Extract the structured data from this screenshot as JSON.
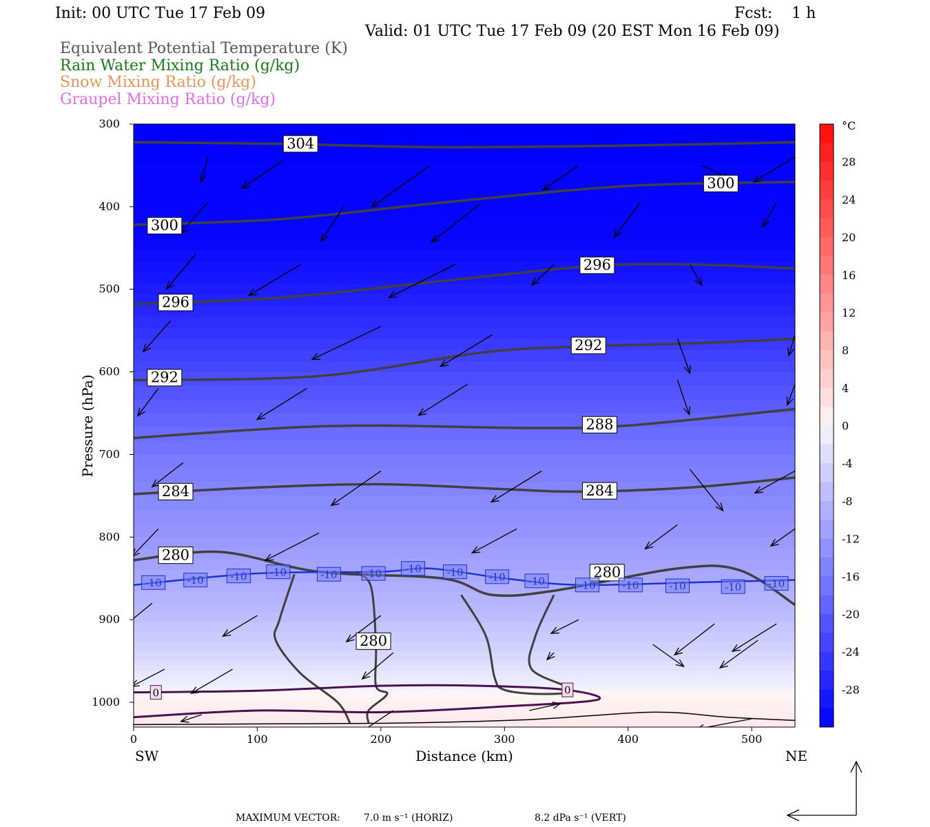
{
  "header": {
    "init": "Init: 00 UTC Tue 17 Feb 09",
    "fcst": "Fcst:    1 h",
    "valid": "Valid: 01 UTC Tue 17 Feb 09 (20 EST Mon 16 Feb 09)"
  },
  "fields": [
    {
      "label": "Equivalent Potential Temperature (K)",
      "color": "#555555"
    },
    {
      "label": "Rain Water Mixing Ratio (g/kg)",
      "color": "#1a7a1a"
    },
    {
      "label": "Snow Mixing Ratio (g/kg)",
      "color": "#e8955a"
    },
    {
      "label": "Graupel Mixing Ratio (g/kg)",
      "color": "#e070e0"
    }
  ],
  "chart_data": {
    "type": "heatmap",
    "xlabel": "Distance (km)",
    "ylabel": "Pressure (hPa)",
    "xlim": [
      0,
      535
    ],
    "ylim": [
      1030,
      300
    ],
    "x_ticks": [
      "0",
      "100",
      "200",
      "300",
      "400",
      "500"
    ],
    "y_ticks": [
      "300",
      "400",
      "500",
      "600",
      "700",
      "800",
      "900",
      "1000"
    ],
    "x_end_labels": {
      "left": "SW",
      "right": "NE"
    },
    "colorbar": {
      "unit": "°C",
      "ticks": [
        "28",
        "24",
        "20",
        "16",
        "12",
        "8",
        "4",
        "0",
        "-4",
        "-8",
        "-12",
        "-16",
        "-20",
        "-24",
        "-28"
      ],
      "range": [
        -32,
        32
      ]
    },
    "theta_e_contours": [
      {
        "label": "304",
        "points": [
          [
            0,
            322
          ],
          [
            120,
            324
          ],
          [
            250,
            328
          ],
          [
            400,
            326
          ],
          [
            535,
            322
          ]
        ],
        "label_at": [
          135,
          324
        ]
      },
      {
        "label": "300",
        "points": [
          [
            0,
            422
          ],
          [
            120,
            415
          ],
          [
            250,
            395
          ],
          [
            400,
            375
          ],
          [
            535,
            370
          ]
        ],
        "label_at": [
          25,
          423
        ]
      },
      {
        "label": "300",
        "points": [],
        "label_at": [
          475,
          372
        ]
      },
      {
        "label": "296",
        "points": [
          [
            0,
            518
          ],
          [
            120,
            510
          ],
          [
            250,
            490
          ],
          [
            370,
            472
          ],
          [
            450,
            470
          ],
          [
            535,
            475
          ]
        ],
        "label_at": [
          34,
          516
        ]
      },
      {
        "label": "296",
        "points": [],
        "label_at": [
          375,
          471
        ]
      },
      {
        "label": "292",
        "points": [
          [
            0,
            610
          ],
          [
            150,
            605
          ],
          [
            280,
            577
          ],
          [
            350,
            570
          ],
          [
            460,
            565
          ],
          [
            535,
            560
          ]
        ],
        "label_at": [
          25,
          607
        ]
      },
      {
        "label": "292",
        "points": [],
        "label_at": [
          368,
          568
        ]
      },
      {
        "label": "288",
        "points": [
          [
            0,
            680
          ],
          [
            120,
            668
          ],
          [
            200,
            665
          ],
          [
            320,
            668
          ],
          [
            400,
            665
          ],
          [
            535,
            645
          ]
        ],
        "label_at": [
          377,
          664
        ]
      },
      {
        "label": "284",
        "points": [
          [
            0,
            748
          ],
          [
            100,
            740
          ],
          [
            200,
            736
          ],
          [
            300,
            742
          ],
          [
            360,
            745
          ],
          [
            450,
            740
          ],
          [
            535,
            728
          ]
        ],
        "label_at": [
          34,
          745
        ]
      },
      {
        "label": "284",
        "points": [],
        "label_at": [
          377,
          744
        ]
      },
      {
        "label": "280",
        "points": [
          [
            0,
            828
          ],
          [
            70,
            818
          ],
          [
            150,
            842
          ],
          [
            250,
            850
          ],
          [
            290,
            870
          ],
          [
            340,
            865
          ],
          [
            440,
            838
          ],
          [
            490,
            840
          ],
          [
            535,
            882
          ]
        ],
        "label_at": [
          34,
          822
        ]
      },
      {
        "label": "280",
        "points": [],
        "label_at": [
          383,
          843
        ]
      },
      {
        "label": "280",
        "points": [],
        "label_at": [
          194,
          926
        ]
      }
    ],
    "isotherm_minus10": {
      "label": "-10",
      "points": [
        [
          0,
          858
        ],
        [
          100,
          844
        ],
        [
          200,
          842
        ],
        [
          240,
          838
        ],
        [
          300,
          850
        ],
        [
          360,
          858
        ],
        [
          450,
          855
        ],
        [
          535,
          852
        ]
      ],
      "label_positions": [
        [
          16,
          855
        ],
        [
          50,
          852
        ],
        [
          85,
          847
        ],
        [
          117,
          842
        ],
        [
          158,
          845
        ],
        [
          194,
          844
        ],
        [
          226,
          838
        ],
        [
          260,
          842
        ],
        [
          294,
          848
        ],
        [
          326,
          853
        ],
        [
          367,
          858
        ],
        [
          402,
          858
        ],
        [
          440,
          859
        ],
        [
          485,
          860
        ],
        [
          520,
          856
        ]
      ]
    },
    "zero_line": {
      "label": "0",
      "points": [
        [
          0,
          988
        ],
        [
          100,
          986
        ],
        [
          200,
          980
        ],
        [
          280,
          980
        ],
        [
          350,
          985
        ],
        [
          375,
          997
        ],
        [
          300,
          1005
        ],
        [
          200,
          1012
        ],
        [
          100,
          1010
        ],
        [
          0,
          1018
        ]
      ],
      "labels": [
        [
          18,
          988
        ],
        [
          351,
          985
        ]
      ]
    },
    "wind_vectors": [
      [
        60,
        340,
        -10,
        36
      ],
      [
        120,
        345,
        -58,
        39
      ],
      [
        240,
        350,
        -85,
        60
      ],
      [
        360,
        350,
        -52,
        36
      ],
      [
        460,
        350,
        40,
        20
      ],
      [
        535,
        340,
        -60,
        36
      ],
      [
        60,
        395,
        -40,
        45
      ],
      [
        170,
        400,
        -33,
        50
      ],
      [
        280,
        397,
        -70,
        55
      ],
      [
        410,
        395,
        -38,
        50
      ],
      [
        520,
        395,
        -20,
        35
      ],
      [
        50,
        458,
        -42,
        50
      ],
      [
        135,
        470,
        -75,
        45
      ],
      [
        260,
        470,
        -96,
        48
      ],
      [
        340,
        470,
        -32,
        30
      ],
      [
        450,
        470,
        17,
        30
      ],
      [
        30,
        538,
        -40,
        45
      ],
      [
        200,
        545,
        -100,
        48
      ],
      [
        290,
        555,
        -75,
        46
      ],
      [
        440,
        560,
        18,
        50
      ],
      [
        535,
        555,
        -9,
        30
      ],
      [
        20,
        620,
        -30,
        40
      ],
      [
        140,
        620,
        -72,
        45
      ],
      [
        270,
        615,
        -71,
        45
      ],
      [
        440,
        610,
        17,
        50
      ],
      [
        535,
        615,
        -11,
        30
      ],
      [
        40,
        710,
        -45,
        35
      ],
      [
        200,
        720,
        -72,
        50
      ],
      [
        330,
        720,
        -73,
        45
      ],
      [
        450,
        718,
        48,
        60
      ],
      [
        535,
        720,
        -58,
        32
      ],
      [
        20,
        790,
        -38,
        40
      ],
      [
        150,
        795,
        -78,
        40
      ],
      [
        310,
        790,
        -65,
        35
      ],
      [
        440,
        785,
        -47,
        35
      ],
      [
        535,
        790,
        -35,
        25
      ],
      [
        15,
        880,
        -55,
        45
      ],
      [
        100,
        895,
        -50,
        30
      ],
      [
        200,
        895,
        -50,
        38
      ],
      [
        360,
        900,
        -40,
        20
      ],
      [
        470,
        905,
        -58,
        45
      ],
      [
        520,
        905,
        -64,
        40
      ],
      [
        25,
        960,
        -48,
        25
      ],
      [
        80,
        960,
        -60,
        35
      ],
      [
        210,
        940,
        -45,
        38
      ],
      [
        340,
        940,
        -10,
        10
      ],
      [
        420,
        930,
        45,
        32
      ],
      [
        505,
        925,
        -55,
        40
      ],
      [
        55,
        1015,
        -30,
        10
      ],
      [
        210,
        1010,
        -60,
        40
      ],
      [
        320,
        1010,
        45,
        -10
      ],
      [
        500,
        1020,
        -80,
        15
      ]
    ]
  },
  "footer": {
    "prefix": "MAXIMUM VECTOR:",
    "horiz": "7.0 m s⁻¹ (HORIZ)",
    "vert": "8.2 dPa s⁻¹ (VERT)"
  }
}
